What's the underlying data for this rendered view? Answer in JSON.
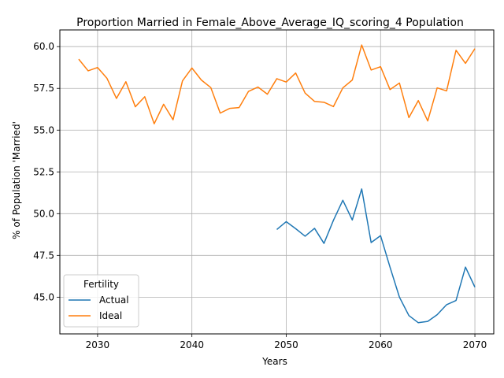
{
  "chart_data": {
    "type": "line",
    "title": "Proportion Married in Female_Above_Average_IQ_scoring_4 Population",
    "xlabel": "Years",
    "ylabel": "% of Population 'Married'",
    "xlim": [
      2026,
      2072
    ],
    "ylim": [
      42.8,
      61.0
    ],
    "xticks": [
      2030,
      2040,
      2050,
      2060,
      2070
    ],
    "yticks": [
      45.0,
      47.5,
      50.0,
      52.5,
      55.0,
      57.5,
      60.0
    ],
    "grid": true,
    "legend": {
      "title": "Fertility",
      "placement": "lower-left"
    },
    "series": [
      {
        "name": "Actual",
        "color": "#1f77b4",
        "x": [
          2049,
          2050,
          2051,
          2052,
          2053,
          2054,
          2055,
          2056,
          2057,
          2058,
          2059,
          2060,
          2061,
          2062,
          2063,
          2064,
          2065,
          2066,
          2067,
          2068,
          2069,
          2070
        ],
        "y": [
          49.05,
          49.52,
          49.1,
          48.65,
          49.12,
          48.22,
          49.6,
          50.8,
          49.62,
          51.48,
          48.27,
          48.68,
          46.8,
          45.0,
          43.9,
          43.47,
          43.55,
          43.95,
          44.55,
          44.8,
          46.8,
          45.6
        ]
      },
      {
        "name": "Ideal",
        "color": "#ff7f0e",
        "x": [
          2028,
          2029,
          2030,
          2031,
          2032,
          2033,
          2034,
          2035,
          2036,
          2037,
          2038,
          2039,
          2040,
          2041,
          2042,
          2043,
          2044,
          2045,
          2046,
          2047,
          2048,
          2049,
          2050,
          2051,
          2052,
          2053,
          2054,
          2055,
          2056,
          2057,
          2058,
          2059,
          2060,
          2061,
          2062,
          2063,
          2064,
          2065,
          2066,
          2067,
          2068,
          2069,
          2070
        ],
        "y": [
          59.25,
          58.55,
          58.75,
          58.1,
          56.9,
          57.9,
          56.4,
          57.0,
          55.38,
          56.55,
          55.62,
          57.95,
          58.72,
          58.0,
          57.55,
          56.02,
          56.3,
          56.35,
          57.32,
          57.58,
          57.15,
          58.08,
          57.88,
          58.42,
          57.22,
          56.72,
          56.67,
          56.41,
          57.53,
          58.0,
          60.1,
          58.6,
          58.8,
          57.43,
          57.82,
          55.75,
          56.77,
          55.55,
          57.53,
          57.35,
          59.78,
          59.0,
          59.88
        ]
      }
    ]
  }
}
